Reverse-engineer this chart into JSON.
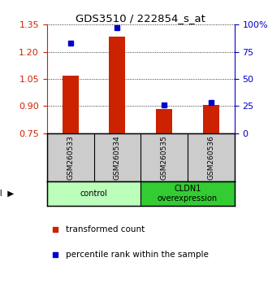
{
  "title": "GDS3510 / 222854_s_at",
  "samples": [
    "GSM260533",
    "GSM260534",
    "GSM260535",
    "GSM260536"
  ],
  "bar_values": [
    1.07,
    1.285,
    0.882,
    0.908
  ],
  "bar_baseline": 0.75,
  "percentile_values": [
    83,
    97,
    26,
    28
  ],
  "ylim_left": [
    0.75,
    1.35
  ],
  "ylim_right": [
    0,
    100
  ],
  "yticks_left": [
    0.75,
    0.9,
    1.05,
    1.2,
    1.35
  ],
  "yticks_right": [
    0,
    25,
    50,
    75,
    100
  ],
  "yticklabels_right": [
    "0",
    "25",
    "50",
    "75",
    "100%"
  ],
  "bar_color": "#cc2200",
  "marker_color": "#0000cc",
  "bg_color": "#ffffff",
  "label_bg": "#cccccc",
  "protocol_groups": [
    {
      "label": "control",
      "indices": [
        0,
        1
      ],
      "color": "#bbffbb"
    },
    {
      "label": "CLDN1\noverexpression",
      "indices": [
        2,
        3
      ],
      "color": "#33cc33"
    }
  ],
  "bar_width": 0.35,
  "left_axis_color": "#cc2200",
  "right_axis_color": "#0000cc"
}
